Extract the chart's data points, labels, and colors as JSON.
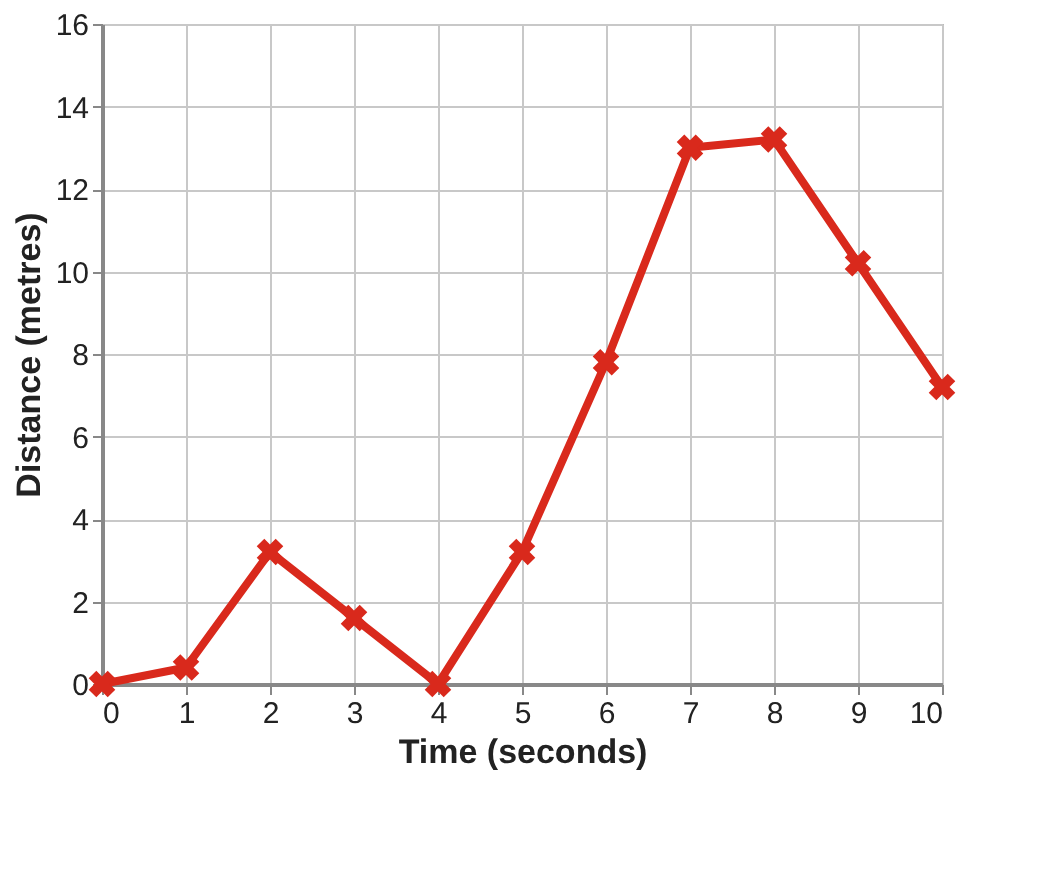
{
  "chart_data": {
    "type": "line",
    "xlabel": "Time (seconds)",
    "ylabel": "Distance (metres)",
    "x": [
      0,
      1,
      2,
      3,
      4,
      5,
      6,
      7,
      8,
      9,
      10
    ],
    "series": [
      {
        "color": "#d9291c",
        "values": [
          0,
          0.4,
          3.2,
          1.6,
          0,
          3.2,
          7.8,
          13.0,
          13.2,
          10.2,
          7.2
        ]
      }
    ],
    "xlim": [
      0,
      10
    ],
    "ylim": [
      0,
      16
    ],
    "xticks": [
      0,
      1,
      2,
      3,
      4,
      5,
      6,
      7,
      8,
      9,
      10
    ],
    "yticks": [
      0,
      2,
      4,
      6,
      8,
      10,
      12,
      14,
      16
    ],
    "grid": true,
    "marker": "cross",
    "line_style": "solid"
  }
}
